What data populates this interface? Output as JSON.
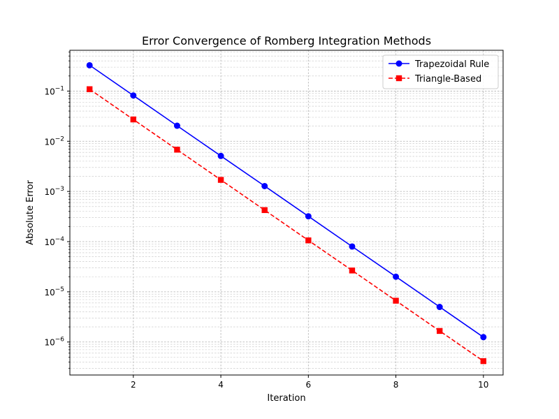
{
  "chart_data": {
    "type": "line",
    "title": "Error Convergence of Romberg Integration Methods",
    "xlabel": "Iteration",
    "ylabel": "Absolute Error",
    "xlim": [
      0.55,
      10.45
    ],
    "ylim": [
      2.2e-07,
      0.65
    ],
    "yscale": "log",
    "xticks": [
      2,
      4,
      6,
      8,
      10
    ],
    "yticks": [
      {
        "value": 1e-06,
        "mant": "10",
        "exp": "−6"
      },
      {
        "value": 1e-05,
        "mant": "10",
        "exp": "−5"
      },
      {
        "value": 0.0001,
        "mant": "10",
        "exp": "−4"
      },
      {
        "value": 0.001,
        "mant": "10",
        "exp": "−3"
      },
      {
        "value": 0.01,
        "mant": "10",
        "exp": "−2"
      },
      {
        "value": 0.1,
        "mant": "10",
        "exp": "−1"
      }
    ],
    "grid": true,
    "legend_position": "top-right",
    "x": [
      1,
      2,
      3,
      4,
      5,
      6,
      7,
      8,
      9,
      10
    ],
    "series": [
      {
        "name": "Trapezoidal Rule",
        "color": "#0000ff",
        "marker": "circle",
        "linestyle": "solid",
        "values": [
          0.327,
          0.0817,
          0.0204,
          0.0051,
          0.00128,
          0.00032,
          8e-05,
          2e-05,
          5e-06,
          1.25e-06
        ]
      },
      {
        "name": "Triangle-Based",
        "color": "#ff0000",
        "marker": "square",
        "linestyle": "dashed",
        "values": [
          0.109,
          0.0272,
          0.0068,
          0.0017,
          0.000425,
          0.000106,
          2.66e-05,
          6.65e-06,
          1.66e-06,
          4.16e-07
        ]
      }
    ]
  }
}
